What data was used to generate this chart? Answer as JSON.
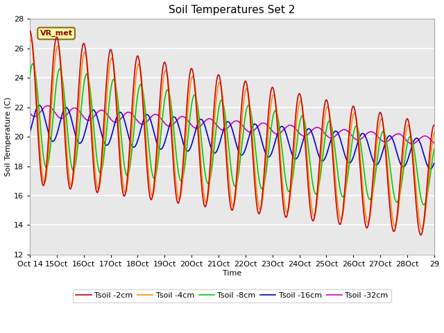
{
  "title": "Soil Temperatures Set 2",
  "xlabel": "Time",
  "ylabel": "Soil Temperature (C)",
  "ylim": [
    12,
    28
  ],
  "yticks": [
    12,
    14,
    16,
    18,
    20,
    22,
    24,
    26,
    28
  ],
  "xtick_labels": [
    "Oct 14",
    "15Oct",
    "16Oct",
    "17Oct",
    "18Oct",
    "19Oct",
    "20Oct",
    "21Oct",
    "22Oct",
    "23Oct",
    "24Oct",
    "25Oct",
    "26Oct",
    "27Oct",
    "28Oct",
    "29"
  ],
  "annotation_text": "VR_met",
  "colors": {
    "Tsoil -2cm": "#cc0000",
    "Tsoil -4cm": "#ff8800",
    "Tsoil -8cm": "#00cc00",
    "Tsoil -16cm": "#0000cc",
    "Tsoil -32cm": "#cc00cc"
  },
  "bg_color": "#e8e8e8",
  "line_width": 1.2,
  "title_fontsize": 11
}
